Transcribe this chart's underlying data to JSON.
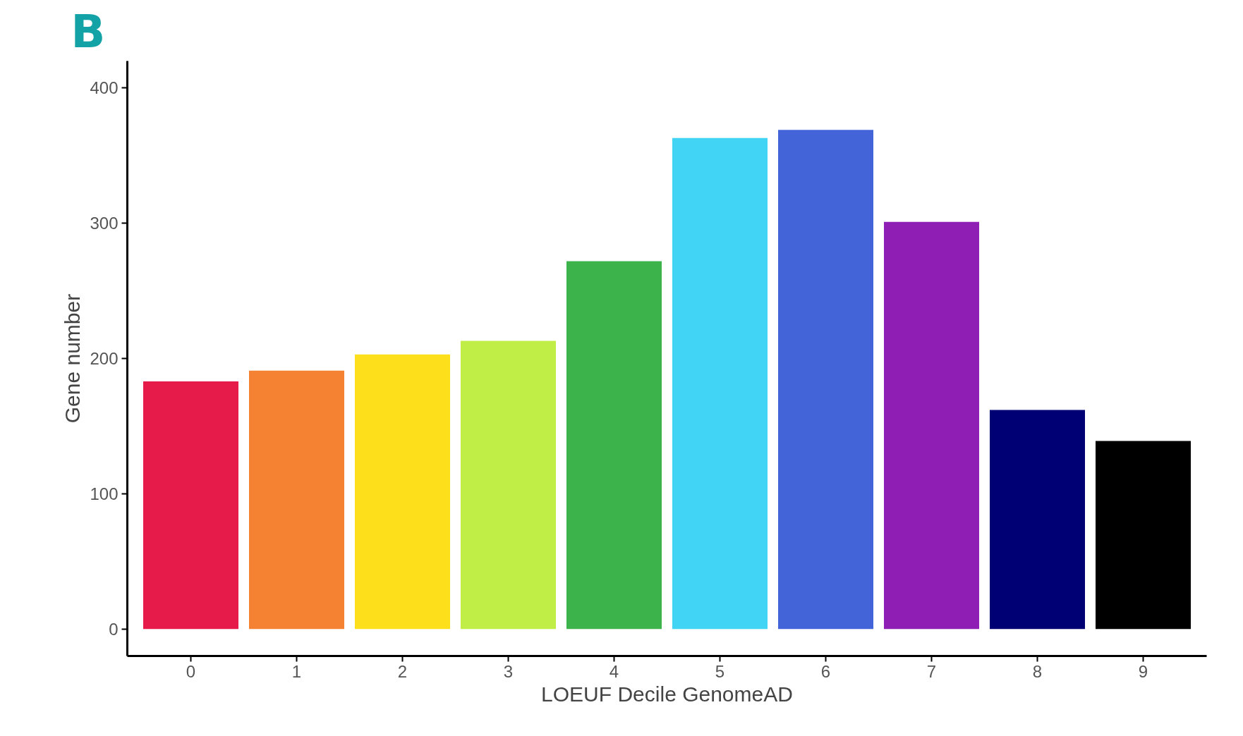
{
  "chart_data": {
    "type": "bar",
    "xlabel": "LOEUF Decile GenomeAD",
    "ylabel": "Gene number",
    "annotations": [
      "B"
    ],
    "categories": [
      "0",
      "1",
      "2",
      "3",
      "4",
      "5",
      "6",
      "7",
      "8",
      "9"
    ],
    "values": [
      183,
      191,
      203,
      213,
      272,
      363,
      369,
      301,
      162,
      139
    ],
    "colors": [
      "#e61b4a",
      "#f58233",
      "#fedf1c",
      "#c0ee47",
      "#3cb44b",
      "#42d4f4",
      "#4363d8",
      "#8e1eb4",
      "#000075",
      "#000000"
    ],
    "ylim": [
      -20,
      420
    ],
    "yticks": [
      0,
      100,
      200,
      300,
      400
    ],
    "grid": false
  }
}
